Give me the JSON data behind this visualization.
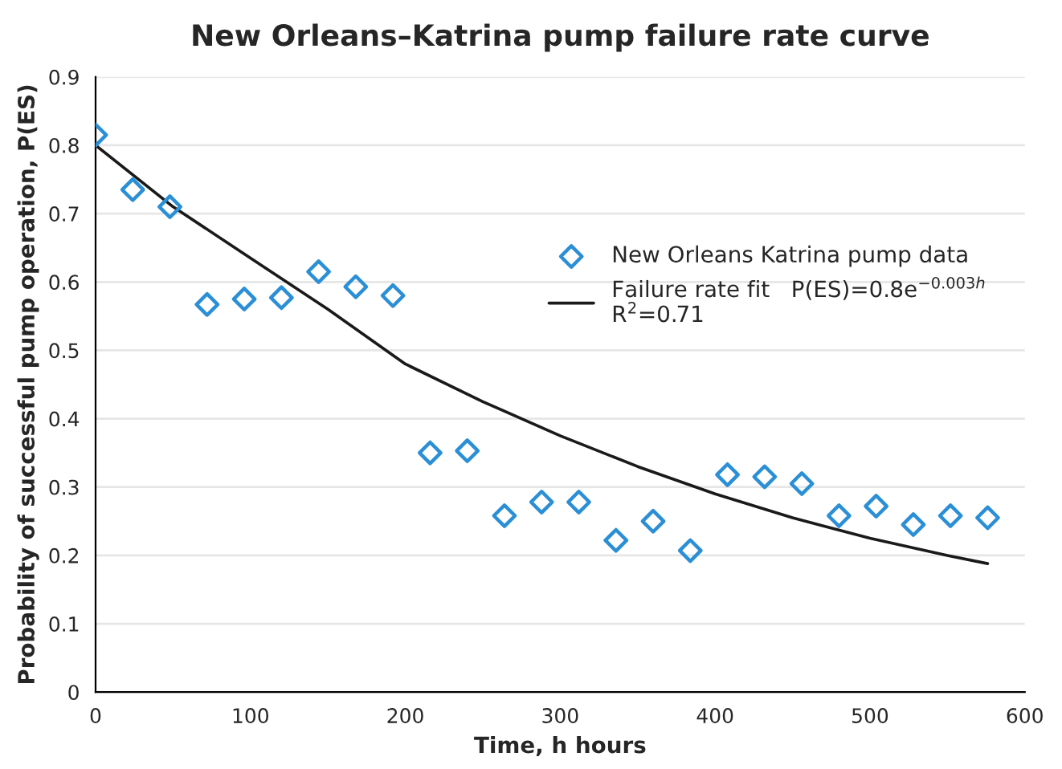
{
  "chart_data": {
    "type": "scatter",
    "title": "New Orleans–Katrina pump failure rate curve",
    "xlabel": "Time, h hours",
    "ylabel": "Probability of successful pump operation, P(ES)",
    "series": [
      {
        "name": "New Orleans Katrina pump data",
        "marker": "diamond",
        "color": "#2b8fd6",
        "x": [
          0,
          24,
          48,
          72,
          96,
          120,
          144,
          168,
          192,
          216,
          240,
          264,
          288,
          312,
          336,
          360,
          384,
          408,
          432,
          456,
          480,
          504,
          528,
          552,
          576
        ],
        "values": [
          0.815,
          0.735,
          0.71,
          0.567,
          0.575,
          0.577,
          0.615,
          0.593,
          0.58,
          0.35,
          0.353,
          0.258,
          0.278,
          0.278,
          0.222,
          0.25,
          0.207,
          0.318,
          0.315,
          0.305,
          0.258,
          0.272,
          0.245,
          0.258,
          0.255
        ]
      },
      {
        "name": "Failure rate fit   P(ES)=0.8e$^{−0.003h}$\nR$^{2}$=0.71",
        "type": "line",
        "marker": "none",
        "line_style": "solid",
        "color": "#1a1a1a",
        "x": [
          0,
          50,
          100,
          150,
          200,
          250,
          300,
          350,
          400,
          450,
          500,
          550,
          576
        ],
        "values": [
          0.8,
          0.71,
          0.635,
          0.56,
          0.48,
          0.425,
          0.375,
          0.33,
          0.29,
          0.255,
          0.225,
          0.2,
          0.188
        ]
      }
    ],
    "xlim": [
      0,
      600
    ],
    "xticks": [
      0,
      100,
      200,
      300,
      400,
      500,
      600
    ],
    "ylim": [
      0,
      0.9
    ],
    "yticks": [
      0,
      0.1,
      0.2,
      0.3,
      0.4,
      0.5,
      0.6,
      0.7,
      0.8,
      0.9
    ],
    "grid": "y",
    "legend": "right"
  }
}
